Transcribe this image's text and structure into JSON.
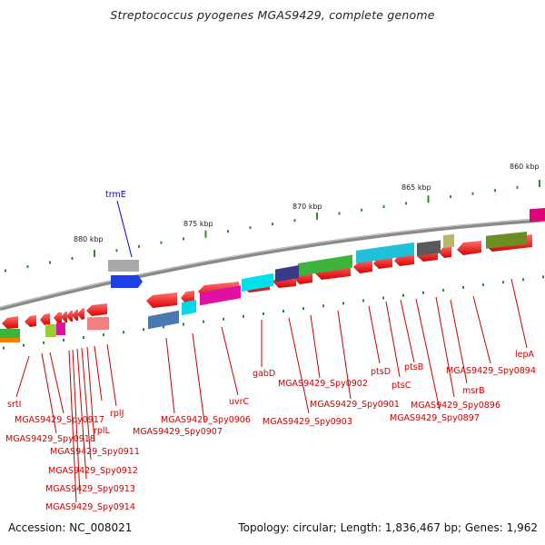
{
  "title": "Streptococcus pyogenes MGAS9429, complete genome",
  "footer": {
    "accession": "Accession: NC_008021",
    "summary": "Topology: circular; Length: 1,836,467 bp; Genes: 1,962"
  },
  "colors": {
    "backbone": "#8a8a8a",
    "tick": "#2e8b2e",
    "label_red": "#cc0000",
    "label_blue": "#0000cc"
  },
  "scale_labels": [
    "860 kbp",
    "865 kbp",
    "870 kbp",
    "875 kbp",
    "880 kbp"
  ],
  "gene_labels": [
    "trmE",
    "lepA",
    "MGAS9429_Spy0894",
    "msrB",
    "MGAS9429_Spy0896",
    "MGAS9429_Spy0897",
    "ptsB",
    "ptsC",
    "ptsD",
    "MGAS9429_Spy0901",
    "MGAS9429_Spy0902",
    "MGAS9429_Spy0903",
    "gabD",
    "uvrC",
    "MGAS9429_Spy0906",
    "MGAS9429_Spy0907",
    "rplL",
    "rplJ",
    "srtI",
    "MGAS9429_Spy0911",
    "MGAS9429_Spy0912",
    "MGAS9429_Spy0913",
    "MGAS9429_Spy0914",
    "MGAS9429_Spy0917",
    "MGAS9429_Spy0918"
  ]
}
